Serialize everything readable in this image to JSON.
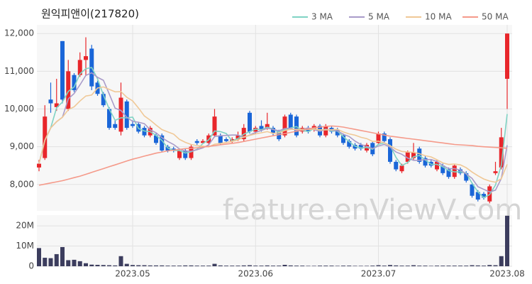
{
  "chart_data": [
    {
      "type": "candlestick",
      "title": "원익피앤이(217820)",
      "watermark": "feature.enViewV.com",
      "up_color": "#e8262b",
      "down_color": "#1a66d8",
      "grid": true,
      "ylim": [
        7300,
        12230
      ],
      "yticks": [
        {
          "value": 8000,
          "label": "8,000"
        },
        {
          "value": 9000,
          "label": "9,000"
        },
        {
          "value": 10000,
          "label": "10,000"
        },
        {
          "value": 11000,
          "label": "11,000"
        },
        {
          "value": 12000,
          "label": "12,000"
        }
      ],
      "open": [
        8450,
        8700,
        10250,
        10050,
        11800,
        10000,
        10900,
        10900,
        11300,
        11600,
        10700,
        10400,
        10000,
        9600,
        9400,
        10200,
        9600,
        9600,
        9500,
        9300,
        9300,
        9300,
        9000,
        8950,
        8700,
        8900,
        8700,
        9150,
        9100,
        9100,
        9300,
        9300,
        9200,
        9150,
        9200,
        9200,
        9900,
        9400,
        9550,
        9500,
        9500,
        9400,
        9300,
        9850,
        9800,
        9400,
        9500,
        9450,
        9550,
        9300,
        9500,
        9450,
        9300,
        9150,
        9050,
        9050,
        8900,
        9100,
        9100,
        9350,
        9200,
        8600,
        8350,
        8600,
        8700,
        8950,
        8700,
        8600,
        8400,
        8500,
        8400,
        8200,
        8400,
        8300,
        8000,
        7800,
        7750,
        7550,
        8300,
        8450,
        10800
      ],
      "high": [
        8650,
        10100,
        10700,
        10800,
        11800,
        11300,
        10950,
        11500,
        11900,
        11700,
        10750,
        10450,
        10050,
        9700,
        10700,
        10250,
        9700,
        9650,
        9550,
        9550,
        9350,
        9350,
        9050,
        9000,
        8950,
        8950,
        9050,
        9200,
        9200,
        9350,
        10000,
        9350,
        9250,
        9250,
        9400,
        9600,
        9950,
        9550,
        9700,
        9900,
        9550,
        9450,
        9850,
        9900,
        9850,
        9550,
        9550,
        9600,
        9600,
        9600,
        9550,
        9500,
        9350,
        9200,
        9100,
        9100,
        9100,
        9150,
        9400,
        9400,
        9250,
        8650,
        8550,
        8900,
        9100,
        9000,
        8750,
        8650,
        8650,
        8550,
        8450,
        8550,
        8450,
        8350,
        8050,
        7850,
        7800,
        8000,
        8600,
        9500,
        12000
      ],
      "low": [
        8350,
        8650,
        9900,
        9950,
        10150,
        9950,
        10450,
        10850,
        10900,
        10500,
        10350,
        10050,
        9450,
        9450,
        9300,
        9450,
        9500,
        9350,
        9250,
        9250,
        9050,
        8850,
        8850,
        8850,
        8650,
        8650,
        8650,
        9050,
        9100,
        9050,
        9250,
        9050,
        9100,
        9100,
        9150,
        9150,
        9350,
        9350,
        9400,
        9450,
        9300,
        9150,
        9250,
        9450,
        9250,
        9350,
        9350,
        9400,
        9250,
        9250,
        9350,
        9250,
        9050,
        8950,
        8900,
        8900,
        8850,
        8750,
        9050,
        9100,
        8550,
        8350,
        8300,
        8550,
        8650,
        8550,
        8450,
        8450,
        8350,
        8250,
        8150,
        8150,
        8250,
        8050,
        7650,
        7550,
        7600,
        7500,
        8250,
        8400,
        10000
      ],
      "close": [
        8550,
        9800,
        10150,
        10150,
        10250,
        11000,
        10500,
        11300,
        11400,
        10600,
        10400,
        10100,
        9500,
        9500,
        10300,
        9500,
        9550,
        9400,
        9300,
        9500,
        9100,
        8900,
        8900,
        8900,
        8900,
        8700,
        9000,
        9100,
        9150,
        9300,
        9800,
        9100,
        9150,
        9200,
        9300,
        9500,
        9400,
        9500,
        9450,
        9600,
        9350,
        9200,
        9800,
        9500,
        9300,
        9500,
        9400,
        9550,
        9300,
        9550,
        9400,
        9300,
        9100,
        9000,
        8950,
        8950,
        9050,
        8800,
        9350,
        9150,
        8600,
        8400,
        8500,
        8850,
        8850,
        8600,
        8500,
        8500,
        8600,
        8300,
        8200,
        8500,
        8300,
        8100,
        7700,
        7600,
        7650,
        7950,
        8350,
        9250,
        12000
      ],
      "series": [
        {
          "name": "3 MA",
          "color": "#7fd3c4",
          "values": [
            8550,
            9175,
            9500,
            10033,
            10183,
            10467,
            10583,
            10933,
            11067,
            11100,
            10800,
            10367,
            10000,
            9700,
            9767,
            9767,
            9783,
            9483,
            9417,
            9400,
            9300,
            9167,
            8967,
            8900,
            8900,
            8833,
            8867,
            8933,
            9083,
            9183,
            9417,
            9400,
            9350,
            9150,
            9217,
            9333,
            9400,
            9467,
            9450,
            9517,
            9467,
            9383,
            9450,
            9500,
            9533,
            9433,
            9400,
            9483,
            9417,
            9467,
            9417,
            9417,
            9267,
            9133,
            9017,
            8967,
            8983,
            8933,
            9067,
            9100,
            9033,
            8717,
            8500,
            8583,
            8733,
            8767,
            8650,
            8533,
            8533,
            8467,
            8367,
            8333,
            8333,
            8300,
            8033,
            7800,
            7650,
            7733,
            7983,
            8517,
            9867
          ]
        },
        {
          "name": "5 MA",
          "color": "#a99bc9",
          "values": [
            8550,
            9175,
            9500,
            9663,
            9780,
            10270,
            10410,
            10640,
            10890,
            10960,
            10840,
            10760,
            10400,
            10020,
            9960,
            9780,
            9670,
            9650,
            9610,
            9450,
            9370,
            9240,
            9140,
            9060,
            8940,
            8880,
            8880,
            8920,
            8970,
            9050,
            9270,
            9290,
            9300,
            9310,
            9310,
            9250,
            9310,
            9380,
            9430,
            9490,
            9460,
            9420,
            9480,
            9490,
            9430,
            9460,
            9500,
            9450,
            9410,
            9460,
            9440,
            9420,
            9330,
            9270,
            9150,
            9060,
            9010,
            8950,
            9020,
            9060,
            8990,
            8860,
            8800,
            8700,
            8640,
            8640,
            8660,
            8660,
            8610,
            8500,
            8420,
            8420,
            8380,
            8280,
            8160,
            7940,
            7870,
            7800,
            7850,
            8160,
            9040
          ]
        },
        {
          "name": "10 MA",
          "color": "#f0c896",
          "values": [
            8550,
            9175,
            9500,
            9663,
            9780,
            9983,
            10057,
            10213,
            10344,
            10370,
            10555,
            10585,
            10520,
            10455,
            10460,
            10310,
            10215,
            10025,
            9815,
            9705,
            9575,
            9455,
            9395,
            9335,
            9195,
            9115,
            9060,
            9030,
            9015,
            8995,
            9065,
            9085,
            9110,
            9140,
            9180,
            9260,
            9300,
            9340,
            9370,
            9400,
            9355,
            9365,
            9430,
            9460,
            9460,
            9460,
            9460,
            9465,
            9450,
            9445,
            9450,
            9460,
            9390,
            9340,
            9305,
            9250,
            9215,
            9140,
            9145,
            9105,
            9025,
            8935,
            8875,
            8860,
            8850,
            8815,
            8760,
            8730,
            8655,
            8570,
            8530,
            8540,
            8520,
            8445,
            8330,
            8230,
            8145,
            8090,
            8060,
            8155,
            8535
          ]
        },
        {
          "name": "50 MA",
          "color": "#f59a8a",
          "values": [
            7980,
            8010,
            8040,
            8070,
            8100,
            8140,
            8180,
            8220,
            8270,
            8320,
            8370,
            8420,
            8470,
            8520,
            8570,
            8620,
            8670,
            8710,
            8750,
            8790,
            8830,
            8860,
            8890,
            8910,
            8930,
            8950,
            8960,
            8970,
            8990,
            9010,
            9030,
            9050,
            9070,
            9090,
            9110,
            9140,
            9170,
            9200,
            9230,
            9260,
            9290,
            9320,
            9350,
            9380,
            9410,
            9440,
            9470,
            9500,
            9520,
            9540,
            9550,
            9540,
            9520,
            9490,
            9460,
            9430,
            9400,
            9370,
            9340,
            9310,
            9280,
            9260,
            9240,
            9220,
            9200,
            9180,
            9160,
            9140,
            9120,
            9100,
            9080,
            9060,
            9050,
            9040,
            9030,
            9010,
            9000,
            8990,
            8980,
            8970,
            8960
          ]
        }
      ]
    },
    {
      "type": "bar",
      "color": "#3c3d5e",
      "grid": true,
      "ylim": [
        0,
        25300000
      ],
      "yticks": [
        0,
        {
          "value": 10000000,
          "label": "10M"
        },
        {
          "value": 20000000,
          "label": "20M"
        }
      ],
      "categories": [
        null,
        null,
        null,
        null,
        null,
        null,
        null,
        null,
        null,
        null,
        null,
        null,
        null,
        null,
        null,
        null,
        "2023.05",
        null,
        null,
        null,
        null,
        null,
        null,
        null,
        null,
        null,
        null,
        null,
        null,
        null,
        null,
        null,
        null,
        null,
        null,
        null,
        null,
        "2023.06",
        null,
        null,
        null,
        null,
        null,
        null,
        null,
        null,
        null,
        null,
        null,
        null,
        null,
        null,
        null,
        null,
        null,
        null,
        null,
        null,
        "2023.07",
        null,
        null,
        null,
        null,
        null,
        null,
        null,
        null,
        null,
        null,
        null,
        null,
        null,
        null,
        null,
        null,
        null,
        null,
        null,
        null,
        null,
        "2023.08"
      ],
      "values": [
        9000000,
        4200000,
        4000000,
        6000000,
        9500000,
        3000000,
        3200000,
        2500000,
        1500000,
        800000,
        700000,
        600000,
        500000,
        400000,
        5000000,
        1200000,
        600000,
        500000,
        500000,
        400000,
        400000,
        400000,
        300000,
        300000,
        300000,
        400000,
        400000,
        300000,
        300000,
        300000,
        1200000,
        400000,
        300000,
        300000,
        300000,
        400000,
        500000,
        300000,
        300000,
        400000,
        300000,
        300000,
        700000,
        400000,
        300000,
        300000,
        200000,
        200000,
        300000,
        300000,
        300000,
        200000,
        300000,
        300000,
        200000,
        200000,
        200000,
        300000,
        500000,
        300000,
        600000,
        400000,
        300000,
        300000,
        500000,
        300000,
        300000,
        200000,
        300000,
        300000,
        300000,
        300000,
        300000,
        300000,
        500000,
        400000,
        300000,
        600000,
        500000,
        5000000,
        25000000
      ]
    }
  ]
}
